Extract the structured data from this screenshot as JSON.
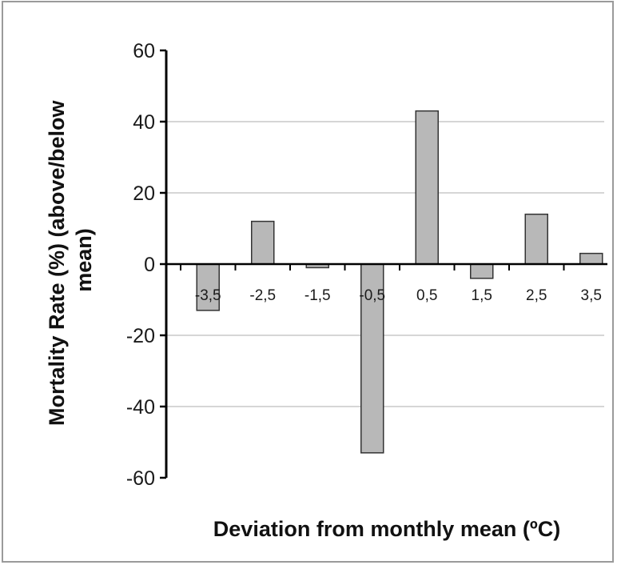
{
  "chart_data": {
    "type": "bar",
    "categories": [
      "-3,5",
      "-2,5",
      "-1,5",
      "-0,5",
      "0,5",
      "1,5",
      "2,5",
      "3,5"
    ],
    "series": [
      {
        "values": [
          -13,
          12,
          -1,
          -53,
          43,
          -4,
          14,
          3
        ]
      }
    ],
    "xlabel": "Deviation from monthly mean (ºC)",
    "ylabel_lines": [
      "Mortality Rate (%) (above/below",
      "mean)"
    ],
    "ylim": [
      -60,
      60
    ],
    "yticks": [
      60,
      40,
      20,
      0,
      -20,
      -40,
      -60
    ],
    "grid": true,
    "legend": false,
    "colors": {
      "bar_fill": "#b8b8b8",
      "bar_stroke": "#333333",
      "grid": "#c8c8c8",
      "axis": "#000000",
      "frame": "#9a9a9a"
    }
  }
}
